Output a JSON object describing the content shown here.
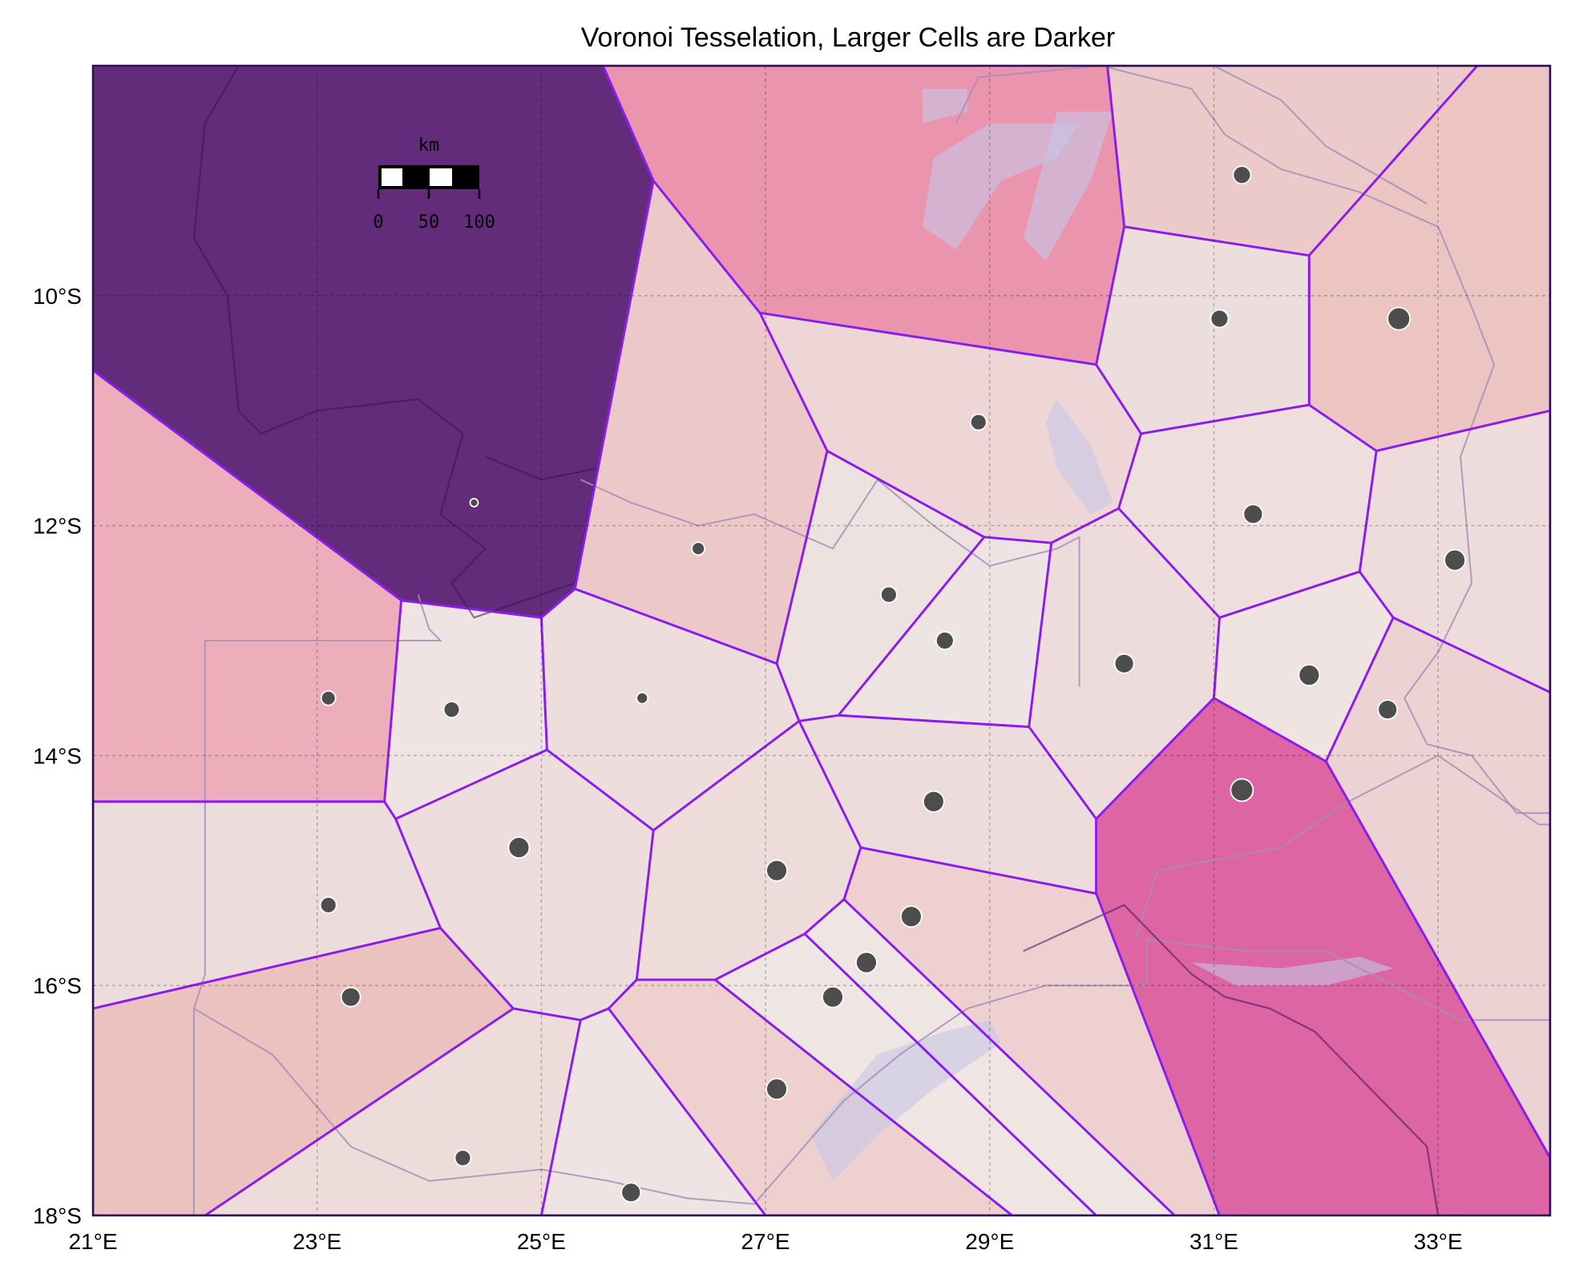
{
  "title": "Voronoi Tesselation, Larger Cells are Darker",
  "x_axis": {
    "ticks": [
      {
        "value": 21,
        "label": "21°E"
      },
      {
        "value": 23,
        "label": "23°E"
      },
      {
        "value": 25,
        "label": "25°E"
      },
      {
        "value": 27,
        "label": "27°E"
      },
      {
        "value": 29,
        "label": "29°E"
      },
      {
        "value": 31,
        "label": "31°E"
      },
      {
        "value": 33,
        "label": "33°E"
      }
    ]
  },
  "y_axis": {
    "ticks": [
      {
        "value": -10,
        "label": "10°S"
      },
      {
        "value": -12,
        "label": "12°S"
      },
      {
        "value": -14,
        "label": "14°S"
      },
      {
        "value": -16,
        "label": "16°S"
      },
      {
        "value": -18,
        "label": "18°S"
      }
    ]
  },
  "extent": {
    "lon": [
      21,
      34
    ],
    "lat": [
      -18,
      -8
    ]
  },
  "grid": true,
  "scale_bar": {
    "unit": "km",
    "labels": [
      "0",
      "50",
      "100"
    ]
  },
  "colors": {
    "cell_edge": "#8b1cf0",
    "point_fill": "#4d4d4d",
    "point_edge": "#ffffff",
    "frame": "#2b0f4f",
    "border": "#a58fb5",
    "water": "#c7c6e6"
  },
  "cells": [
    {
      "color": "#632c7b",
      "poly": [
        [
          21,
          -10.65
        ],
        [
          21,
          -8
        ],
        [
          25.55,
          -8
        ],
        [
          26.0,
          -9.0
        ],
        [
          25.3,
          -12.55
        ],
        [
          25.0,
          -12.8
        ],
        [
          23.75,
          -12.65
        ]
      ]
    },
    {
      "color": "#eb94ae",
      "poly": [
        [
          25.55,
          -8
        ],
        [
          30.05,
          -8
        ],
        [
          30.2,
          -9.4
        ],
        [
          29.95,
          -10.6
        ],
        [
          26.95,
          -10.15
        ],
        [
          26.0,
          -9.0
        ]
      ]
    },
    {
      "color": "#eccaca",
      "poly": [
        [
          30.05,
          -8
        ],
        [
          33.35,
          -8
        ],
        [
          31.85,
          -9.65
        ],
        [
          30.2,
          -9.4
        ]
      ]
    },
    {
      "color": "#ecc4c2",
      "poly": [
        [
          33.35,
          -8
        ],
        [
          34,
          -8
        ],
        [
          34,
          -11.0
        ],
        [
          32.45,
          -11.35
        ],
        [
          31.85,
          -10.95
        ],
        [
          31.85,
          -9.65
        ]
      ]
    },
    {
      "color": "#eddede",
      "poly": [
        [
          30.2,
          -9.4
        ],
        [
          31.85,
          -9.65
        ],
        [
          31.85,
          -10.95
        ],
        [
          30.35,
          -11.2
        ],
        [
          29.95,
          -10.6
        ]
      ]
    },
    {
      "color": "#ecc9c8",
      "poly": [
        [
          26.0,
          -9.0
        ],
        [
          26.95,
          -10.15
        ],
        [
          27.55,
          -11.35
        ],
        [
          27.1,
          -13.2
        ],
        [
          25.3,
          -12.55
        ]
      ]
    },
    {
      "color": "#eed6d6",
      "poly": [
        [
          26.95,
          -10.15
        ],
        [
          29.95,
          -10.6
        ],
        [
          30.35,
          -11.2
        ],
        [
          30.15,
          -11.85
        ],
        [
          29.55,
          -12.15
        ],
        [
          28.95,
          -12.1
        ],
        [
          27.55,
          -11.35
        ]
      ]
    },
    {
      "color": "#ecaeba",
      "poly": [
        [
          21,
          -10.65
        ],
        [
          23.75,
          -12.65
        ],
        [
          23.6,
          -14.4
        ],
        [
          21,
          -14.4
        ]
      ]
    },
    {
      "color": "#eedede",
      "poly": [
        [
          30.35,
          -11.2
        ],
        [
          31.85,
          -10.95
        ],
        [
          32.45,
          -11.35
        ],
        [
          32.3,
          -12.4
        ],
        [
          31.05,
          -12.8
        ],
        [
          30.15,
          -11.85
        ]
      ]
    },
    {
      "color": "#eedcdc",
      "poly": [
        [
          32.45,
          -11.35
        ],
        [
          34,
          -11.0
        ],
        [
          34,
          -13.45
        ],
        [
          32.6,
          -12.8
        ],
        [
          32.3,
          -12.4
        ]
      ]
    },
    {
      "color": "#eee2e1",
      "poly": [
        [
          27.55,
          -11.35
        ],
        [
          28.95,
          -12.1
        ],
        [
          27.65,
          -13.65
        ],
        [
          27.3,
          -13.7
        ],
        [
          27.1,
          -13.2
        ]
      ]
    },
    {
      "color": "#eee4e3",
      "poly": [
        [
          28.95,
          -12.1
        ],
        [
          29.55,
          -12.15
        ],
        [
          29.35,
          -13.75
        ],
        [
          27.65,
          -13.65
        ]
      ]
    },
    {
      "color": "#eedcdc",
      "poly": [
        [
          29.55,
          -12.15
        ],
        [
          30.15,
          -11.85
        ],
        [
          31.05,
          -12.8
        ],
        [
          31.0,
          -13.5
        ],
        [
          29.95,
          -14.55
        ],
        [
          29.35,
          -13.75
        ]
      ]
    },
    {
      "color": "#efe4e2",
      "poly": [
        [
          31.05,
          -12.8
        ],
        [
          32.3,
          -12.4
        ],
        [
          32.6,
          -12.8
        ],
        [
          32.0,
          -14.05
        ],
        [
          31.0,
          -13.5
        ]
      ]
    },
    {
      "color": "#eedddd",
      "poly": [
        [
          25.3,
          -12.55
        ],
        [
          27.1,
          -13.2
        ],
        [
          27.3,
          -13.7
        ],
        [
          26.0,
          -14.65
        ],
        [
          25.05,
          -13.95
        ],
        [
          25.0,
          -12.8
        ]
      ]
    },
    {
      "color": "#efe4e3",
      "poly": [
        [
          23.75,
          -12.65
        ],
        [
          25.0,
          -12.8
        ],
        [
          25.05,
          -13.95
        ],
        [
          23.7,
          -14.55
        ],
        [
          23.6,
          -14.4
        ]
      ]
    },
    {
      "color": "#eddcdc",
      "poly": [
        [
          27.65,
          -13.65
        ],
        [
          29.35,
          -13.75
        ],
        [
          29.95,
          -14.55
        ],
        [
          29.95,
          -15.2
        ],
        [
          27.85,
          -14.8
        ],
        [
          27.3,
          -13.7
        ]
      ]
    },
    {
      "color": "#ecd2d3",
      "poly": [
        [
          32.6,
          -12.8
        ],
        [
          34,
          -13.45
        ],
        [
          34,
          -17.5
        ],
        [
          32.0,
          -14.05
        ]
      ]
    },
    {
      "color": "#dd65a4",
      "poly": [
        [
          31.0,
          -13.5
        ],
        [
          32.0,
          -14.05
        ],
        [
          34,
          -17.5
        ],
        [
          34,
          -18
        ],
        [
          31.05,
          -18
        ],
        [
          29.95,
          -15.2
        ],
        [
          29.95,
          -14.55
        ]
      ]
    },
    {
      "color": "#eddcdc",
      "poly": [
        [
          21,
          -14.4
        ],
        [
          23.6,
          -14.4
        ],
        [
          23.7,
          -14.55
        ],
        [
          24.1,
          -15.5
        ],
        [
          21,
          -16.2
        ]
      ]
    },
    {
      "color": "#eedddd",
      "poly": [
        [
          23.7,
          -14.55
        ],
        [
          25.05,
          -13.95
        ],
        [
          26.0,
          -14.65
        ],
        [
          25.85,
          -15.95
        ],
        [
          25.6,
          -16.2
        ],
        [
          25.35,
          -16.3
        ],
        [
          24.75,
          -16.2
        ],
        [
          24.1,
          -15.5
        ]
      ]
    },
    {
      "color": "#eedcdb",
      "poly": [
        [
          26.0,
          -14.65
        ],
        [
          27.3,
          -13.7
        ],
        [
          27.85,
          -14.8
        ],
        [
          27.7,
          -15.25
        ],
        [
          27.35,
          -15.55
        ],
        [
          26.55,
          -15.95
        ],
        [
          25.85,
          -15.95
        ]
      ]
    },
    {
      "color": "#eed0d1",
      "poly": [
        [
          27.85,
          -14.8
        ],
        [
          29.95,
          -15.2
        ],
        [
          31.05,
          -18
        ],
        [
          30.65,
          -18
        ],
        [
          27.7,
          -15.25
        ]
      ]
    },
    {
      "color": "#efe5e3",
      "poly": [
        [
          27.7,
          -15.25
        ],
        [
          30.65,
          -18
        ],
        [
          29.95,
          -18
        ],
        [
          27.35,
          -15.55
        ]
      ]
    },
    {
      "color": "#efe5e3",
      "poly": [
        [
          27.35,
          -15.55
        ],
        [
          29.95,
          -18
        ],
        [
          29.2,
          -18
        ],
        [
          26.55,
          -15.95
        ]
      ]
    },
    {
      "color": "#ecc2c0",
      "poly": [
        [
          21,
          -16.2
        ],
        [
          24.1,
          -15.5
        ],
        [
          24.75,
          -16.2
        ],
        [
          22.0,
          -18
        ],
        [
          21,
          -18
        ]
      ]
    },
    {
      "color": "#eedcdb",
      "poly": [
        [
          24.75,
          -16.2
        ],
        [
          25.35,
          -16.3
        ],
        [
          25.0,
          -18
        ],
        [
          22.0,
          -18
        ]
      ]
    },
    {
      "color": "#efe4e3",
      "poly": [
        [
          25.35,
          -16.3
        ],
        [
          25.6,
          -16.2
        ],
        [
          27.0,
          -18
        ],
        [
          25.0,
          -18
        ]
      ]
    },
    {
      "color": "#eed0cf",
      "poly": [
        [
          25.6,
          -16.2
        ],
        [
          25.85,
          -15.95
        ],
        [
          26.55,
          -15.95
        ],
        [
          29.2,
          -18
        ],
        [
          27.0,
          -18
        ]
      ]
    }
  ],
  "points": [
    {
      "lon": 24.4,
      "lat": -11.8,
      "size": 5
    },
    {
      "lon": 31.25,
      "lat": -8.95,
      "size": 11
    },
    {
      "lon": 31.05,
      "lat": -10.2,
      "size": 11
    },
    {
      "lon": 32.65,
      "lat": -10.2,
      "size": 14
    },
    {
      "lon": 28.9,
      "lat": -11.1,
      "size": 10
    },
    {
      "lon": 31.35,
      "lat": -11.9,
      "size": 12
    },
    {
      "lon": 26.4,
      "lat": -12.2,
      "size": 8
    },
    {
      "lon": 28.1,
      "lat": -12.6,
      "size": 10
    },
    {
      "lon": 33.15,
      "lat": -12.3,
      "size": 13
    },
    {
      "lon": 28.6,
      "lat": -13.0,
      "size": 11
    },
    {
      "lon": 30.2,
      "lat": -13.2,
      "size": 12
    },
    {
      "lon": 31.85,
      "lat": -13.3,
      "size": 13
    },
    {
      "lon": 23.1,
      "lat": -13.5,
      "size": 9
    },
    {
      "lon": 24.2,
      "lat": -13.6,
      "size": 10
    },
    {
      "lon": 25.9,
      "lat": -13.5,
      "size": 7
    },
    {
      "lon": 32.55,
      "lat": -13.6,
      "size": 12
    },
    {
      "lon": 31.25,
      "lat": -14.3,
      "size": 14
    },
    {
      "lon": 28.5,
      "lat": -14.4,
      "size": 13
    },
    {
      "lon": 24.8,
      "lat": -14.8,
      "size": 13
    },
    {
      "lon": 27.1,
      "lat": -15.0,
      "size": 13
    },
    {
      "lon": 23.1,
      "lat": -15.3,
      "size": 10
    },
    {
      "lon": 28.3,
      "lat": -15.4,
      "size": 13
    },
    {
      "lon": 27.9,
      "lat": -15.8,
      "size": 13
    },
    {
      "lon": 23.3,
      "lat": -16.1,
      "size": 12
    },
    {
      "lon": 27.6,
      "lat": -16.1,
      "size": 13
    },
    {
      "lon": 27.1,
      "lat": -16.9,
      "size": 13
    },
    {
      "lon": 24.3,
      "lat": -17.5,
      "size": 10
    },
    {
      "lon": 25.8,
      "lat": -17.8,
      "size": 12
    }
  ],
  "country_borders": [
    [
      [
        21.9,
        -18
      ],
      [
        21.9,
        -16.2
      ],
      [
        22.0,
        -15.9
      ],
      [
        22.0,
        -13.0
      ],
      [
        24.1,
        -13.0
      ],
      [
        24.0,
        -12.9
      ],
      [
        23.9,
        -12.6
      ]
    ],
    [
      [
        21.9,
        -16.2
      ],
      [
        22.6,
        -16.6
      ],
      [
        23.3,
        -17.4
      ],
      [
        24.0,
        -17.7
      ],
      [
        25.0,
        -17.6
      ],
      [
        25.6,
        -17.7
      ],
      [
        26.3,
        -17.85
      ],
      [
        26.9,
        -17.9
      ],
      [
        27.7,
        -17.0
      ],
      [
        28.2,
        -16.6
      ],
      [
        28.8,
        -16.2
      ],
      [
        29.5,
        -16.0
      ],
      [
        30.4,
        -16.0
      ],
      [
        30.4,
        -15.6
      ],
      [
        31.3,
        -15.7
      ],
      [
        32.0,
        -15.7
      ],
      [
        33.2,
        -16.3
      ],
      [
        34,
        -16.3
      ]
    ],
    [
      [
        30.3,
        -15.6
      ],
      [
        30.5,
        -15.0
      ],
      [
        31.6,
        -14.8
      ],
      [
        32.2,
        -14.4
      ],
      [
        33.0,
        -14.0
      ],
      [
        33.9,
        -14.6
      ],
      [
        34,
        -14.6
      ]
    ],
    [
      [
        29.8,
        -13.4
      ],
      [
        29.8,
        -12.1
      ],
      [
        29.6,
        -12.2
      ],
      [
        29.0,
        -12.35
      ],
      [
        28.5,
        -12.0
      ],
      [
        28.0,
        -11.6
      ],
      [
        27.6,
        -12.2
      ],
      [
        26.9,
        -11.9
      ],
      [
        26.4,
        -12.0
      ],
      [
        25.8,
        -11.8
      ],
      [
        25.35,
        -11.6
      ]
    ],
    [
      [
        28.7,
        -8.5
      ],
      [
        28.9,
        -8.1
      ],
      [
        30.0,
        -8.0
      ],
      [
        30.8,
        -8.2
      ],
      [
        31.1,
        -8.6
      ],
      [
        31.6,
        -8.9
      ],
      [
        32.3,
        -9.1
      ],
      [
        33.0,
        -9.4
      ],
      [
        33.3,
        -10.1
      ],
      [
        33.5,
        -10.6
      ],
      [
        33.2,
        -11.4
      ],
      [
        33.3,
        -12.5
      ],
      [
        33.0,
        -13.1
      ],
      [
        32.7,
        -13.5
      ],
      [
        32.9,
        -13.9
      ],
      [
        33.3,
        -14.0
      ],
      [
        33.7,
        -14.5
      ],
      [
        34,
        -14.5
      ]
    ],
    [
      [
        31.0,
        -8.0
      ],
      [
        31.6,
        -8.3
      ],
      [
        32.0,
        -8.7
      ],
      [
        32.9,
        -9.2
      ]
    ]
  ],
  "dark_borders": [
    [
      [
        22.3,
        -8.0
      ],
      [
        22.0,
        -8.5
      ],
      [
        21.9,
        -9.5
      ],
      [
        22.2,
        -10.0
      ],
      [
        22.3,
        -11.0
      ],
      [
        22.5,
        -11.2
      ],
      [
        23.0,
        -11.0
      ],
      [
        23.9,
        -10.9
      ],
      [
        24.3,
        -11.2
      ],
      [
        24.1,
        -11.9
      ],
      [
        24.5,
        -12.2
      ],
      [
        24.2,
        -12.5
      ],
      [
        24.4,
        -12.8
      ],
      [
        25.3,
        -12.5
      ],
      [
        25.5,
        -11.5
      ],
      [
        25.0,
        -11.6
      ],
      [
        24.5,
        -11.4
      ]
    ],
    [
      [
        29.3,
        -15.7
      ],
      [
        30.2,
        -15.3
      ],
      [
        30.8,
        -15.9
      ],
      [
        31.1,
        -16.1
      ],
      [
        31.5,
        -16.2
      ],
      [
        31.9,
        -16.4
      ],
      [
        32.4,
        -16.9
      ],
      [
        32.9,
        -17.4
      ],
      [
        33.0,
        -18
      ]
    ]
  ],
  "water": [
    [
      [
        29.0,
        -8.5
      ],
      [
        28.5,
        -8.8
      ],
      [
        28.4,
        -9.4
      ],
      [
        28.7,
        -9.6
      ],
      [
        29.1,
        -9.0
      ],
      [
        29.6,
        -8.8
      ],
      [
        29.8,
        -8.5
      ]
    ],
    [
      [
        29.6,
        -8.4
      ],
      [
        29.3,
        -9.5
      ],
      [
        29.5,
        -9.7
      ],
      [
        29.9,
        -9.0
      ],
      [
        30.1,
        -8.4
      ]
    ],
    [
      [
        27.4,
        -17.3
      ],
      [
        28.0,
        -16.6
      ],
      [
        28.6,
        -16.4
      ],
      [
        29.0,
        -16.3
      ],
      [
        29.1,
        -16.5
      ],
      [
        28.5,
        -16.9
      ],
      [
        28.0,
        -17.3
      ],
      [
        27.6,
        -17.7
      ]
    ],
    [
      [
        30.8,
        -15.8
      ],
      [
        31.6,
        -15.85
      ],
      [
        32.3,
        -15.75
      ],
      [
        32.6,
        -15.85
      ],
      [
        32.0,
        -16.0
      ],
      [
        31.2,
        -16.0
      ]
    ],
    [
      [
        29.6,
        -10.9
      ],
      [
        29.9,
        -11.3
      ],
      [
        30.1,
        -11.8
      ],
      [
        29.9,
        -11.9
      ],
      [
        29.6,
        -11.5
      ],
      [
        29.5,
        -11.1
      ]
    ],
    [
      [
        28.4,
        -8.2
      ],
      [
        28.8,
        -8.2
      ],
      [
        28.8,
        -8.4
      ],
      [
        28.4,
        -8.5
      ]
    ]
  ]
}
